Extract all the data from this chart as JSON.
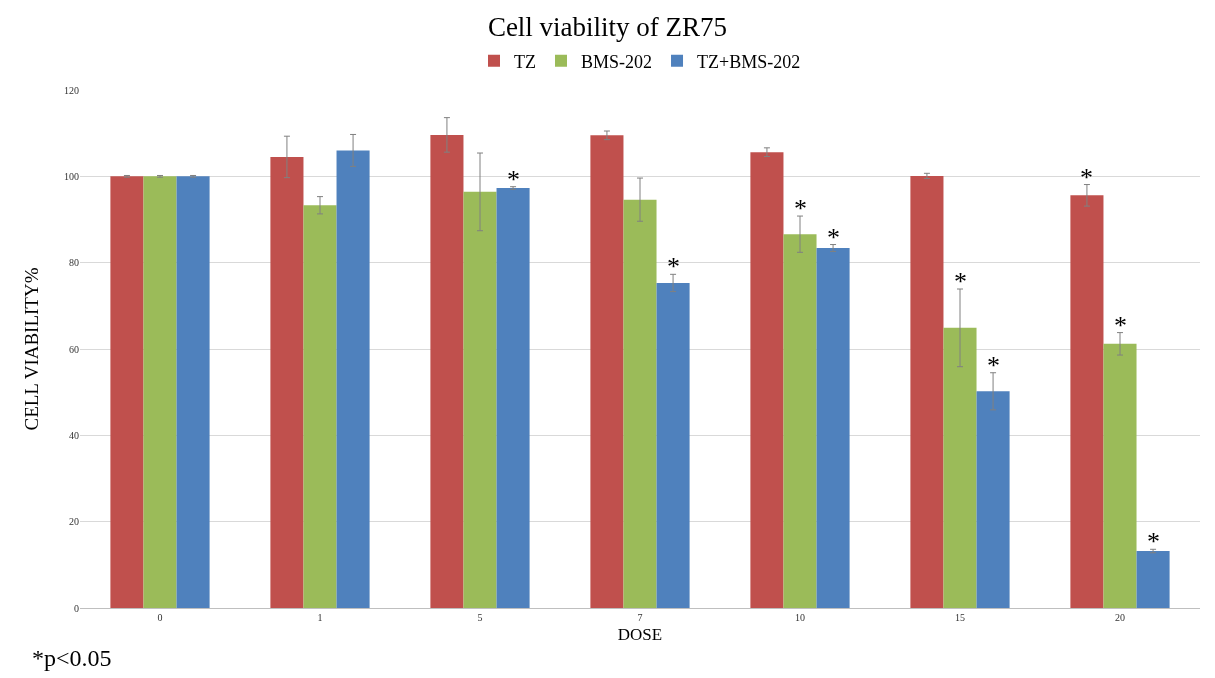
{
  "chart_data": {
    "type": "bar",
    "title": "Cell viability of ZR75",
    "xlabel": "DOSE",
    "ylabel": "CELL VIABILITY%",
    "categories": [
      "0",
      "1",
      "5",
      "7",
      "10",
      "15",
      "20"
    ],
    "series": [
      {
        "name": "TZ",
        "color": "#c0504d",
        "values": [
          100,
          104.5,
          109.6,
          109.5,
          105.6,
          100.1,
          95.6
        ],
        "errors": [
          0.2,
          4.8,
          4,
          1,
          1,
          0.6,
          2.5
        ],
        "value_labels": [
          null,
          null,
          null,
          null,
          null,
          null,
          "*"
        ]
      },
      {
        "name": "BMS-202",
        "color": "#9bbb59",
        "values": [
          100,
          93.3,
          96.4,
          94.6,
          86.6,
          64.9,
          61.2
        ],
        "errors": [
          0.2,
          2,
          9,
          5,
          4.2,
          9,
          2.6
        ],
        "value_labels": [
          null,
          null,
          null,
          null,
          "*",
          "*",
          "*"
        ]
      },
      {
        "name": "TZ+BMS-202",
        "color": "#4f81bd",
        "values": [
          100,
          106,
          97.3,
          75.3,
          83.4,
          50.2,
          13.2
        ],
        "errors": [
          0.2,
          3.7,
          0.3,
          2,
          0.8,
          4.3,
          0.4
        ],
        "value_labels": [
          null,
          null,
          "*",
          "*",
          "*",
          "*",
          "*"
        ]
      }
    ],
    "ylim": [
      0,
      120
    ],
    "yticks": [
      0,
      20,
      40,
      60,
      80,
      100,
      120
    ],
    "grid": "y",
    "legend": "top",
    "annotations": [
      "*p<0.05"
    ]
  }
}
